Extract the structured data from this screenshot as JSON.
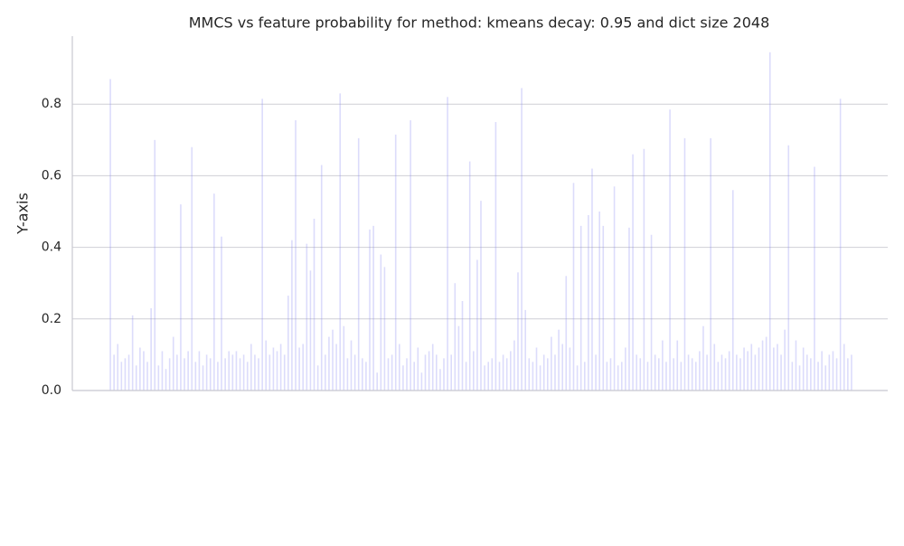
{
  "chart_data": {
    "type": "bar",
    "title": "MMCS vs feature probability for method: kmeans decay: 0.95 and dict size 2048",
    "y_label": "Y-axis",
    "values": [
      0.87,
      0.1,
      0.13,
      0.08,
      0.09,
      0.1,
      0.21,
      0.07,
      0.12,
      0.11,
      0.08,
      0.23,
      0.7,
      0.07,
      0.11,
      0.06,
      0.09,
      0.15,
      0.1,
      0.52,
      0.09,
      0.11,
      0.68,
      0.08,
      0.11,
      0.07,
      0.1,
      0.09,
      0.55,
      0.08,
      0.43,
      0.09,
      0.11,
      0.1,
      0.11,
      0.09,
      0.1,
      0.08,
      0.13,
      0.1,
      0.09,
      0.815,
      0.14,
      0.1,
      0.12,
      0.11,
      0.13,
      0.1,
      0.265,
      0.42,
      0.755,
      0.12,
      0.13,
      0.41,
      0.335,
      0.48,
      0.07,
      0.63,
      0.1,
      0.15,
      0.17,
      0.13,
      0.83,
      0.18,
      0.09,
      0.14,
      0.1,
      0.705,
      0.09,
      0.08,
      0.45,
      0.46,
      0.05,
      0.38,
      0.345,
      0.09,
      0.1,
      0.715,
      0.13,
      0.07,
      0.09,
      0.755,
      0.08,
      0.12,
      0.05,
      0.1,
      0.11,
      0.13,
      0.1,
      0.06,
      0.09,
      0.82,
      0.1,
      0.3,
      0.18,
      0.25,
      0.08,
      0.64,
      0.11,
      0.365,
      0.53,
      0.07,
      0.08,
      0.09,
      0.75,
      0.08,
      0.1,
      0.09,
      0.11,
      0.14,
      0.33,
      0.845,
      0.225,
      0.09,
      0.08,
      0.12,
      0.07,
      0.1,
      0.09,
      0.15,
      0.1,
      0.17,
      0.13,
      0.32,
      0.12,
      0.58,
      0.07,
      0.46,
      0.08,
      0.49,
      0.62,
      0.1,
      0.5,
      0.46,
      0.08,
      0.09,
      0.57,
      0.07,
      0.08,
      0.12,
      0.455,
      0.66,
      0.1,
      0.09,
      0.675,
      0.08,
      0.435,
      0.1,
      0.09,
      0.14,
      0.08,
      0.785,
      0.09,
      0.14,
      0.08,
      0.705,
      0.1,
      0.09,
      0.08,
      0.11,
      0.18,
      0.1,
      0.705,
      0.13,
      0.08,
      0.1,
      0.09,
      0.11,
      0.56,
      0.1,
      0.09,
      0.12,
      0.11,
      0.13,
      0.1,
      0.12,
      0.14,
      0.15,
      0.945,
      0.12,
      0.13,
      0.1,
      0.17,
      0.685,
      0.08,
      0.14,
      0.07,
      0.12,
      0.1,
      0.09,
      0.625,
      0.08,
      0.11,
      0.07,
      0.1,
      0.11,
      0.09,
      0.815,
      0.13,
      0.09,
      0.1
    ],
    "color": "#8a8af2",
    "ylim": [
      0,
      0.99
    ],
    "yticks": [
      {
        "value": 0,
        "label": "0.0"
      },
      0.2,
      0.4,
      0.6,
      0.8
    ],
    "grid": true
  }
}
